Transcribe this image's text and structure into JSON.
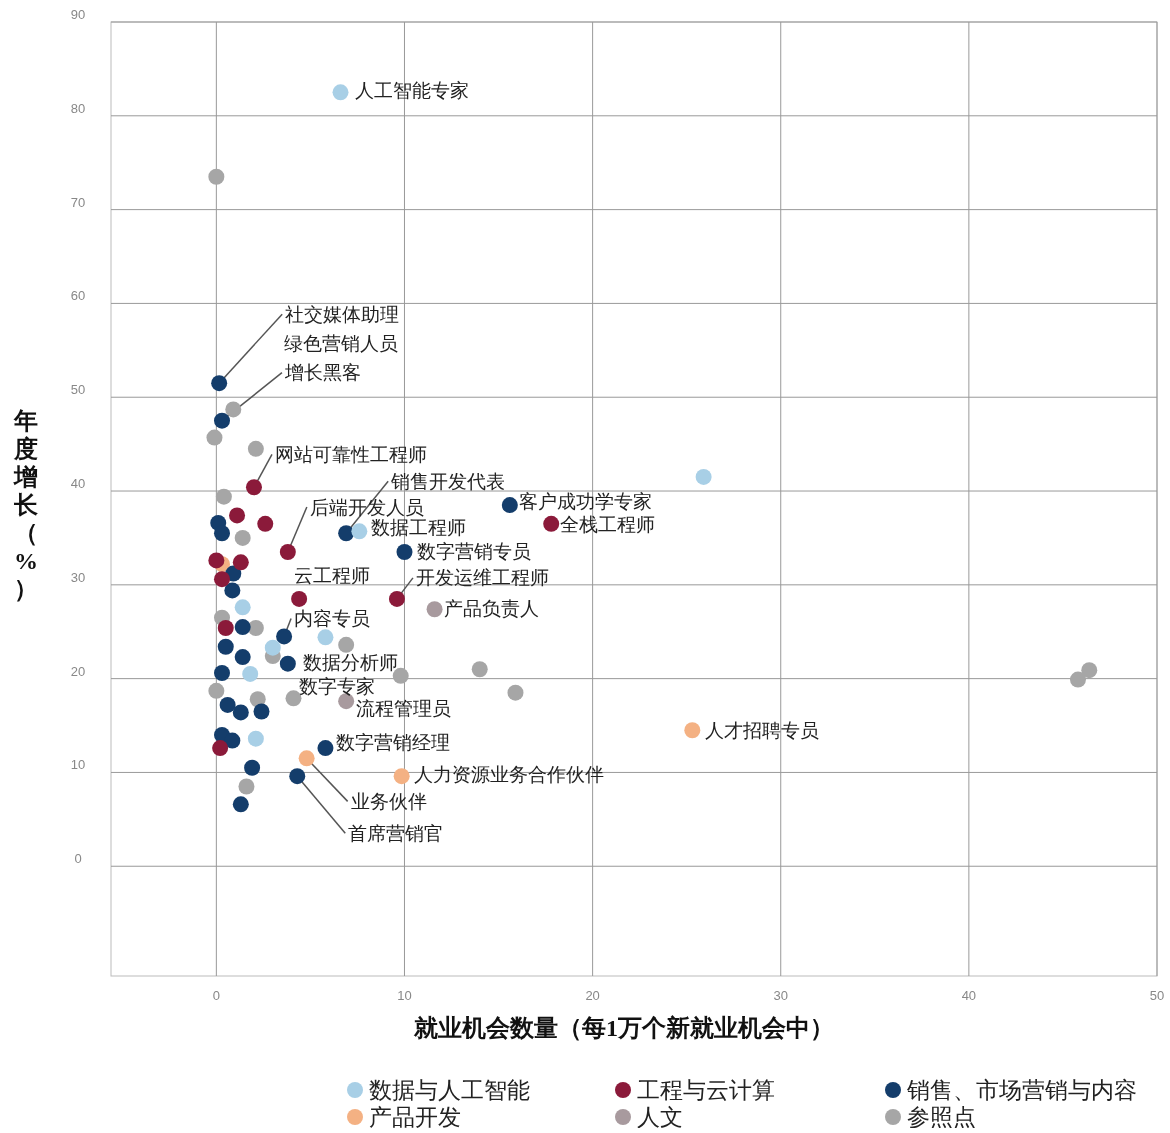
{
  "chart_data": {
    "type": "scatter",
    "xlabel": "就业机会数量（每1万个新就业机会中）",
    "ylabel": "年度增长（%）",
    "xlim": [
      -5.6,
      50
    ],
    "ylim": [
      -11.7,
      90
    ],
    "xticks": [
      0,
      10,
      20,
      30,
      40,
      50
    ],
    "yticks": [
      0,
      10,
      20,
      30,
      40,
      50,
      60,
      70,
      80,
      90
    ],
    "grid": true,
    "legend": "bottom",
    "marker": "circle",
    "series": [
      {
        "name": "数据与人工智能",
        "color": "#a8cfe6",
        "x": [
          6.6,
          25.9,
          7.6,
          1.4,
          1.8,
          2.1,
          5.8,
          3.0
        ],
        "values": [
          82.5,
          41.5,
          35.7,
          27.6,
          20.5,
          13.6,
          24.4,
          23.3
        ]
      },
      {
        "name": "工程与云计算",
        "color": "#8b1a3a",
        "x": [
          2.0,
          3.8,
          4.4,
          9.6,
          17.8,
          1.1,
          2.6,
          0,
          1.3,
          0.3,
          0.5,
          0.2
        ],
        "values": [
          40.4,
          33.5,
          28.5,
          28.5,
          36.5,
          37.4,
          36.5,
          32.6,
          32.4,
          30.6,
          25.4,
          12.6
        ]
      },
      {
        "name": "销售、市场营销与内容",
        "color": "#143d6b",
        "x": [
          0.15,
          0.3,
          6.9,
          15.6,
          10.0,
          3.6,
          3.8,
          5.8,
          4.3,
          0.1,
          0.3,
          0.9,
          0.85,
          1.4,
          0.5,
          1.4,
          0.3,
          0.6,
          1.3,
          2.4,
          0.3,
          0.85,
          1.9,
          1.3
        ],
        "values": [
          51.5,
          47.5,
          35.5,
          38.5,
          33.5,
          24.5,
          21.6,
          12.6,
          9.6,
          36.6,
          35.5,
          31.2,
          29.4,
          25.5,
          23.4,
          22.3,
          20.6,
          17.2,
          16.4,
          16.5,
          14.0,
          13.4,
          10.5,
          6.6
        ]
      },
      {
        "name": "产品开发",
        "color": "#f4b183",
        "x": [
          25.3,
          9.85,
          4.8,
          0.3
        ],
        "values": [
          14.5,
          9.6,
          11.5,
          32.2
        ]
      },
      {
        "name": "人文",
        "color": "#a89a9e",
        "x": [
          11.6,
          6.9
        ],
        "values": [
          27.4,
          17.6
        ]
      },
      {
        "name": "参照点",
        "color": "#a6a6a6",
        "x": [
          0,
          -0.1,
          0.9,
          2.1,
          0.4,
          1.4,
          0.3,
          2.1,
          3.0,
          6.9,
          9.8,
          14.0,
          15.9,
          4.1,
          2.2,
          1.6,
          0,
          45.8,
          46.4
        ],
        "values": [
          73.5,
          45.7,
          48.7,
          44.5,
          39.4,
          35.0,
          26.5,
          25.4,
          22.4,
          23.6,
          20.3,
          21.0,
          18.5,
          17.9,
          17.8,
          8.5,
          18.7,
          19.9,
          20.9
        ]
      }
    ],
    "annotations": [
      {
        "text": "人工智能专家",
        "x": 6.6,
        "y": 82.5
      },
      {
        "text": "社交媒体助理",
        "x": 0.15,
        "y": 51.5
      },
      "绿色营销人员",
      {
        "text": "增长黑客",
        "x": 0.3,
        "y": 47.5
      },
      {
        "text": "网站可靠性工程师",
        "x": 2.0,
        "y": 40.4
      },
      {
        "text": "销售开发代表",
        "x": 6.9,
        "y": 35.5
      },
      {
        "text": "后端开发人员",
        "x": 3.8,
        "y": 33.5
      },
      {
        "text": "数据工程师",
        "x": 7.6,
        "y": 35.7
      },
      {
        "text": "客户成功学专家",
        "x": 15.6,
        "y": 38.5
      },
      {
        "text": "全栈工程师",
        "x": 17.8,
        "y": 36.5
      },
      {
        "text": "数字营销专员",
        "x": 10.0,
        "y": 33.5
      },
      {
        "text": "云工程师",
        "x": 4.4,
        "y": 28.5
      },
      {
        "text": "开发运维工程师",
        "x": 9.6,
        "y": 28.5
      },
      {
        "text": "产品负责人",
        "x": 11.6,
        "y": 27.4
      },
      {
        "text": "内容专员",
        "x": 3.6,
        "y": 24.5
      },
      {
        "text": "数据分析师",
        "x": 3.8,
        "y": 21.6
      },
      {
        "text": "数字专家",
        "x": 4.1,
        "y": 17.9
      },
      {
        "text": "流程管理员",
        "x": 6.9,
        "y": 17.6
      },
      {
        "text": "数字营销经理",
        "x": 5.8,
        "y": 12.6
      },
      {
        "text": "人才招聘专员",
        "x": 25.3,
        "y": 14.5
      },
      {
        "text": "人力资源业务合作伙伴",
        "x": 9.85,
        "y": 9.6
      },
      {
        "text": "业务伙伴",
        "x": 4.8,
        "y": 11.5
      },
      {
        "text": "首席营销官",
        "x": 4.3,
        "y": 9.6
      }
    ]
  }
}
